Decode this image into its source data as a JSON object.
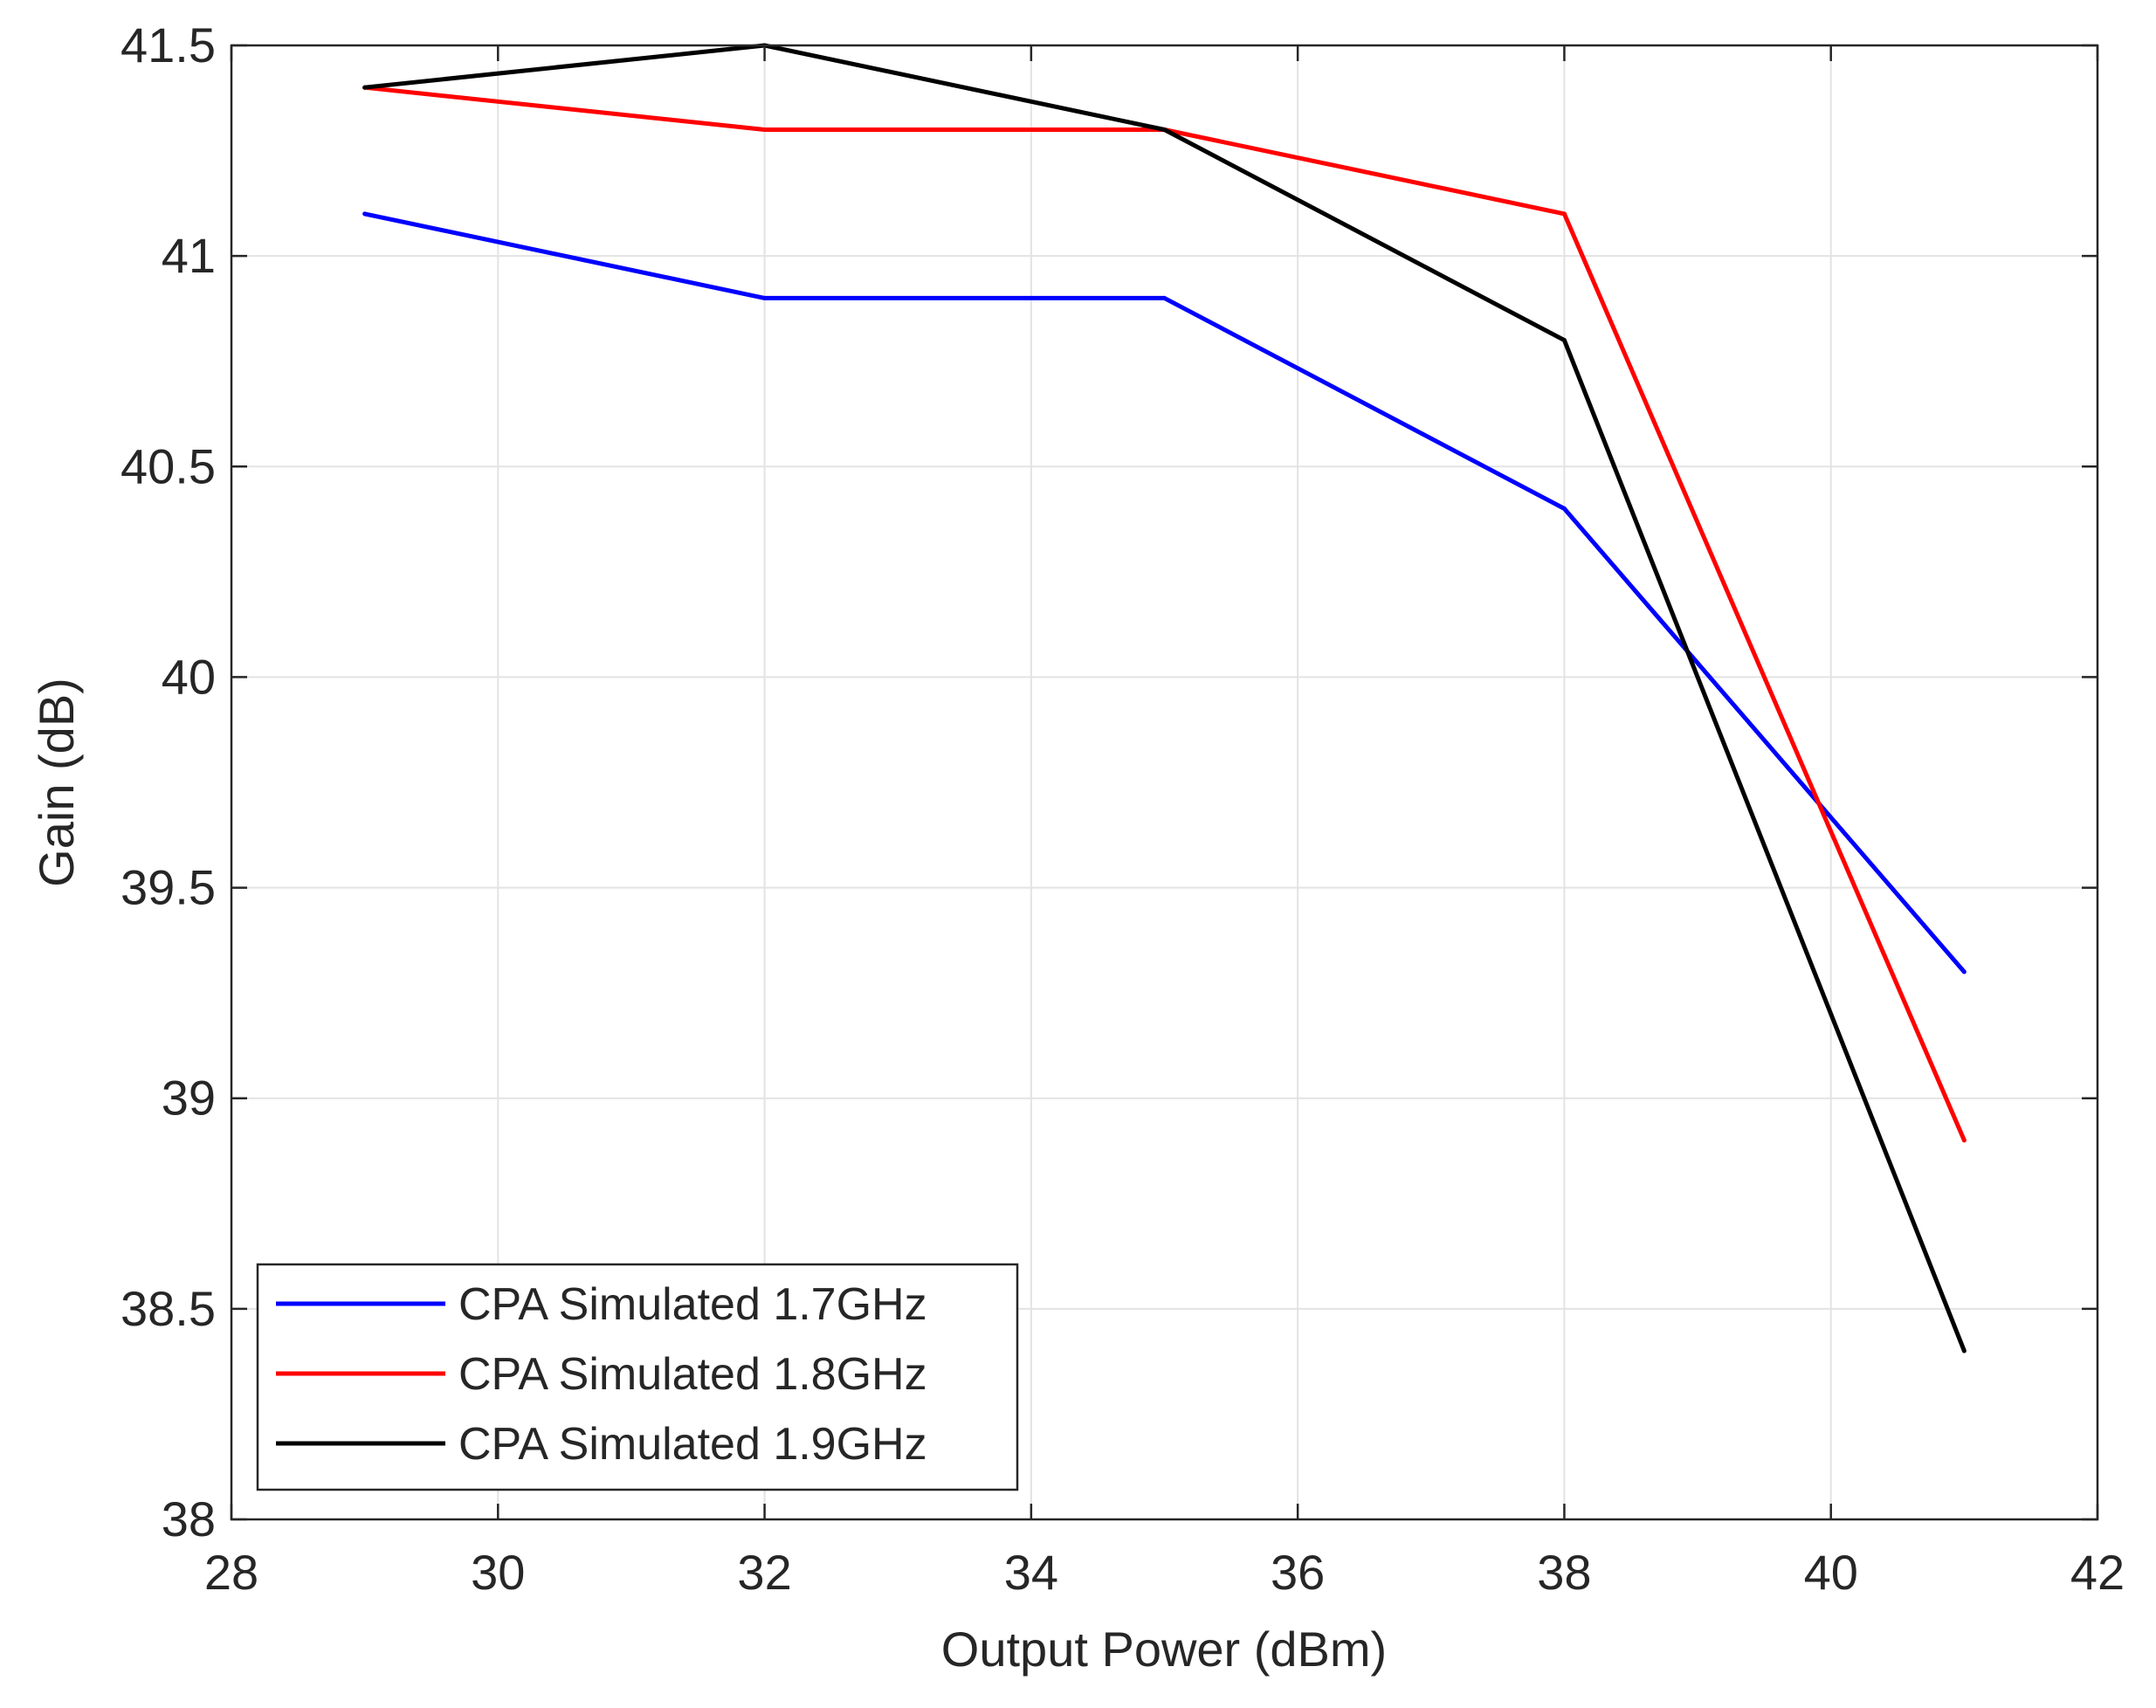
{
  "chart_data": {
    "type": "line",
    "title": "",
    "xlabel": "Output Power (dBm)",
    "ylabel": "Gain (dB)",
    "xlim": [
      28,
      42
    ],
    "ylim": [
      38,
      41.5
    ],
    "xticks": [
      28,
      30,
      32,
      34,
      36,
      38,
      40,
      42
    ],
    "yticks": [
      38,
      38.5,
      39,
      39.5,
      40,
      40.5,
      41,
      41.5
    ],
    "xtick_labels": [
      "28",
      "30",
      "32",
      "34",
      "36",
      "38",
      "40",
      "42"
    ],
    "ytick_labels": [
      "38",
      "38.5",
      "39",
      "39.5",
      "40",
      "40.5",
      "41",
      "41.5"
    ],
    "grid": true,
    "legend_position": "bottom-left",
    "x": [
      29,
      32,
      35,
      38,
      41
    ],
    "series": [
      {
        "name": "CPA Simulated 1.7GHz",
        "color": "#0000ff",
        "values": [
          41.1,
          40.9,
          40.9,
          40.4,
          39.3
        ]
      },
      {
        "name": "CPA Simulated 1.8GHz",
        "color": "#ff0000",
        "values": [
          41.4,
          41.3,
          41.3,
          41.1,
          38.9
        ]
      },
      {
        "name": "CPA Simulated 1.9GHz",
        "color": "#000000",
        "values": [
          41.4,
          41.5,
          41.3,
          40.8,
          38.4
        ]
      }
    ]
  }
}
